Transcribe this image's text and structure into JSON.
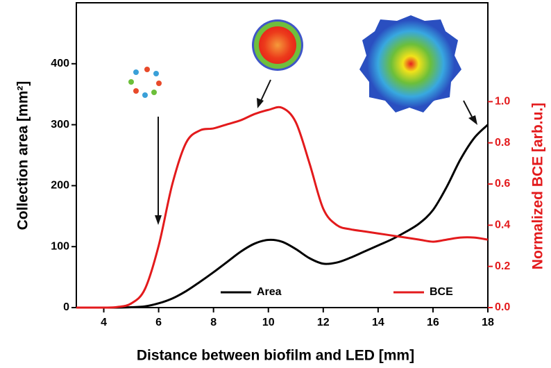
{
  "chart_data": {
    "type": "line",
    "xlabel": "Distance between biofilm and LED [mm]",
    "ylabel": "Collection area [mm²]",
    "y2label": "Normalized BCE [arb.u.]",
    "x": [
      3,
      3.5,
      4,
      4.5,
      5,
      5.5,
      6,
      6.5,
      7,
      7.5,
      8,
      8.5,
      9,
      9.5,
      10,
      10.5,
      11,
      11.5,
      12,
      12.5,
      13,
      13.5,
      14,
      14.5,
      15,
      15.5,
      16,
      16.5,
      17,
      17.5,
      18
    ],
    "series": [
      {
        "name": "Area",
        "color": "#000000",
        "values": [
          0,
          0,
          0,
          0,
          0.5,
          2,
          7,
          15,
          27,
          42,
          58,
          75,
          92,
          105,
          111,
          108,
          96,
          81,
          72,
          74,
          82,
          92,
          102,
          112,
          124,
          138,
          160,
          198,
          243,
          278,
          300
        ]
      },
      {
        "name": "BCE",
        "color": "#e31a1c",
        "axis": "y2",
        "values": [
          0,
          0,
          0,
          0.003,
          0.02,
          0.09,
          0.3,
          0.6,
          0.8,
          0.86,
          0.87,
          0.89,
          0.91,
          0.94,
          0.96,
          0.97,
          0.9,
          0.7,
          0.48,
          0.4,
          0.38,
          0.37,
          0.36,
          0.35,
          0.34,
          0.33,
          0.32,
          0.33,
          0.34,
          0.34,
          0.33
        ]
      }
    ],
    "xlim": [
      3,
      18
    ],
    "xticks": [
      4,
      6,
      8,
      10,
      12,
      14,
      16,
      18
    ],
    "ylim": [
      0,
      500
    ],
    "yticks": [
      0,
      100,
      200,
      300,
      400
    ],
    "y2lim": [
      0,
      1.48
    ],
    "y2ticks": [
      {
        "value": 0,
        "label": "0.0"
      },
      0.2,
      0.4,
      0.6,
      0.8,
      {
        "value": 1,
        "label": "1.0"
      }
    ],
    "y2color": "#e31a1c"
  }
}
